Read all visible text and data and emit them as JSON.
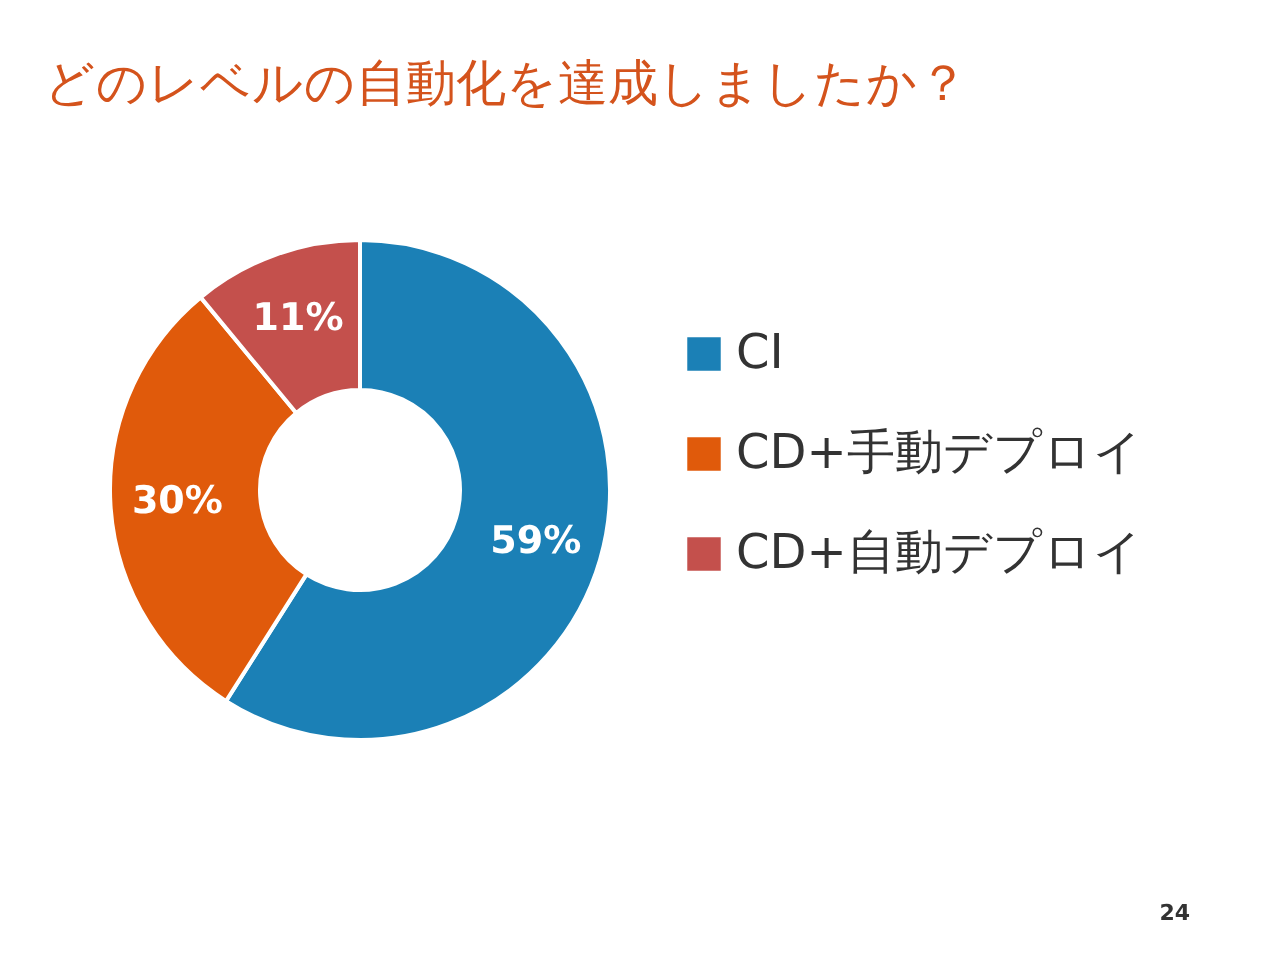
{
  "chart_data": {
    "type": "donut",
    "title": "どのレベルの自動化を達成しましたか？",
    "categories": [
      "CI",
      "CD+手動デプロイ",
      "CD+自動デプロイ"
    ],
    "values": [
      59,
      30,
      11
    ],
    "colors": [
      "#1b80b6",
      "#e05a0b",
      "#c4504c"
    ],
    "value_labels": [
      "59%",
      "30%",
      "11%"
    ],
    "legend": "right",
    "annotations": [
      "24"
    ]
  }
}
